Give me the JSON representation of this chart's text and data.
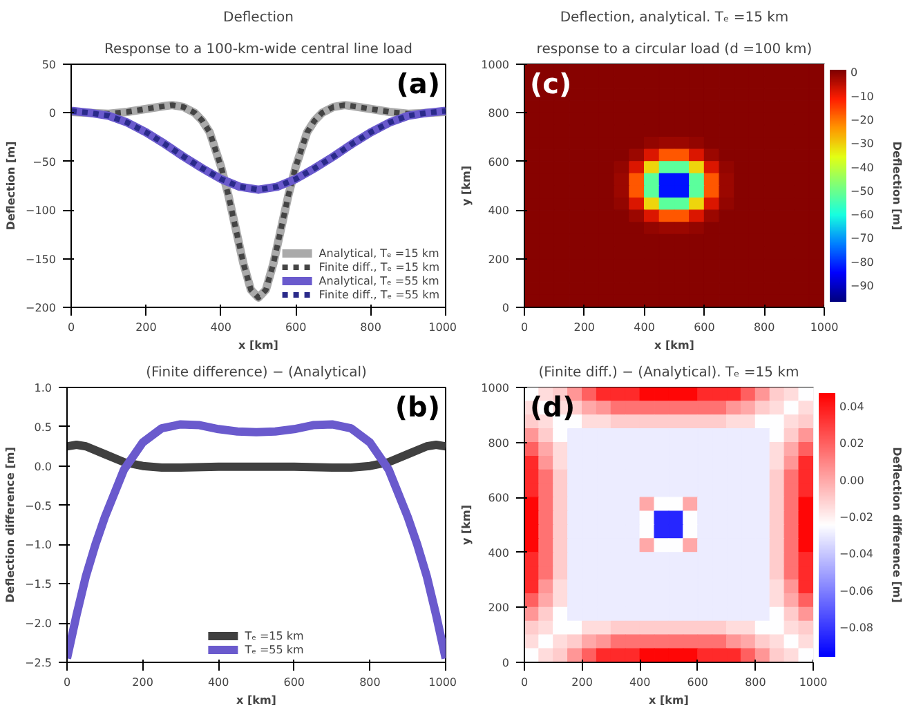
{
  "chart_data": [
    {
      "type": "line",
      "title": "Deflection",
      "subtitle": "Response to a 100-km-wide central line load",
      "xlabel": "x [km]",
      "ylabel": "Deflection [m]",
      "annotations": [
        "(a)"
      ],
      "xlim": [
        0,
        1000
      ],
      "xticks": [
        0,
        200,
        400,
        600,
        800,
        1000
      ],
      "ylim": [
        -200,
        50
      ],
      "yticks": [
        {
          "value": -200,
          "label": "−200"
        },
        {
          "value": -150,
          "label": "−150"
        },
        {
          "value": -100,
          "label": "−100"
        },
        {
          "value": -50,
          "label": "−50"
        },
        0,
        50
      ],
      "grid": false,
      "legend": "bottom right",
      "series": [
        {
          "name": "Analytical, Tₑ =15 km",
          "color": "#aaaaaa",
          "line_style": "solid",
          "x": [
            0,
            50,
            100,
            150,
            200,
            250,
            270,
            300,
            330,
            350,
            370,
            400,
            420,
            440,
            460,
            480,
            500,
            520,
            540,
            560,
            580,
            600,
            630,
            650,
            670,
            700,
            730,
            750,
            800,
            850,
            900,
            950,
            1000
          ],
          "values": [
            1,
            0,
            -1,
            1,
            4,
            7,
            8,
            6,
            0,
            -8,
            -20,
            -55,
            -85,
            -120,
            -155,
            -182,
            -190,
            -182,
            -155,
            -120,
            -85,
            -55,
            -20,
            -8,
            0,
            6,
            8,
            7,
            4,
            1,
            -1,
            0,
            1
          ]
        },
        {
          "name": "Finite diff., Tₑ =15 km",
          "color": "#444444",
          "line_style": "dotted",
          "x": [
            0,
            50,
            100,
            150,
            200,
            250,
            270,
            300,
            330,
            350,
            370,
            400,
            420,
            440,
            460,
            480,
            500,
            520,
            540,
            560,
            580,
            600,
            630,
            650,
            670,
            700,
            730,
            750,
            800,
            850,
            900,
            950,
            1000
          ],
          "values": [
            1,
            0,
            -1,
            1,
            4,
            7,
            8,
            6,
            0,
            -8,
            -20,
            -55,
            -85,
            -120,
            -155,
            -182,
            -190,
            -182,
            -155,
            -120,
            -85,
            -55,
            -20,
            -8,
            0,
            6,
            8,
            7,
            4,
            1,
            -1,
            0,
            1
          ]
        },
        {
          "name": "Analytical, Tₑ =55 km",
          "color": "#6a5acd",
          "line_style": "solid",
          "x": [
            0,
            50,
            100,
            150,
            200,
            250,
            300,
            350,
            400,
            450,
            500,
            550,
            600,
            650,
            700,
            750,
            800,
            850,
            900,
            950,
            1000
          ],
          "values": [
            2,
            0,
            -3,
            -10,
            -20,
            -32,
            -45,
            -57,
            -68,
            -76,
            -79,
            -76,
            -68,
            -57,
            -45,
            -32,
            -20,
            -10,
            -3,
            0,
            2
          ]
        },
        {
          "name": "Finite diff., Tₑ =55 km",
          "color": "#2a2a8a",
          "line_style": "dotted",
          "x": [
            0,
            50,
            100,
            150,
            200,
            250,
            300,
            350,
            400,
            450,
            500,
            550,
            600,
            650,
            700,
            750,
            800,
            850,
            900,
            950,
            1000
          ],
          "values": [
            2,
            0,
            -3,
            -10,
            -20,
            -32,
            -45,
            -57,
            -68,
            -76,
            -79,
            -76,
            -68,
            -57,
            -45,
            -32,
            -20,
            -10,
            -3,
            0,
            2
          ]
        }
      ]
    },
    {
      "type": "heatmap",
      "title": "Deflection, analytical. Tₑ =15 km",
      "subtitle": "response to a circular load (d =100 km)",
      "xlabel": "x [km]",
      "ylabel": "y [km]",
      "clabel": "Deflection [m]",
      "annotations": [
        "(c)"
      ],
      "xlim": [
        0,
        1000
      ],
      "xticks": [
        0,
        200,
        400,
        600,
        800,
        1000
      ],
      "ylim": [
        0,
        1000
      ],
      "yticks": [
        0,
        200,
        400,
        600,
        800,
        1000
      ],
      "clim": [
        -97,
        1
      ],
      "cticks": [
        {
          "value": 0,
          "label": "0"
        },
        {
          "value": -10,
          "label": "−10"
        },
        {
          "value": -20,
          "label": "−20"
        },
        {
          "value": -30,
          "label": "−30"
        },
        {
          "value": -40,
          "label": "−40"
        },
        {
          "value": -50,
          "label": "−50"
        },
        {
          "value": -60,
          "label": "−60"
        },
        {
          "value": -70,
          "label": "−70"
        },
        {
          "value": -80,
          "label": "−80"
        },
        {
          "value": -90,
          "label": "−90"
        }
      ],
      "colors": [
        "#00007f",
        "#0000ff",
        "#0080ff",
        "#17ffe0",
        "#7dff7a",
        "#e3ff14",
        "#ff9600",
        "#ff1e00",
        "#7f0000"
      ],
      "cells": [
        [
          0,
          0,
          0,
          0,
          0,
          0,
          0,
          0,
          0,
          0,
          0,
          0,
          0,
          0,
          0,
          0,
          0,
          0,
          0,
          0
        ],
        [
          0,
          0,
          0,
          0,
          0,
          0,
          0,
          0,
          0,
          0,
          0,
          0,
          0,
          0,
          0,
          0,
          0,
          0,
          0,
          0
        ],
        [
          0,
          0,
          0,
          0,
          0,
          0,
          0,
          0,
          0,
          0,
          0,
          0,
          0,
          0,
          0,
          0,
          0,
          0,
          0,
          0
        ],
        [
          0,
          0,
          0,
          0,
          0,
          0,
          0,
          0,
          0,
          0,
          0,
          0,
          0,
          0,
          0,
          0,
          0,
          0,
          0,
          0
        ],
        [
          0,
          0,
          0,
          0,
          0,
          0,
          0,
          0,
          0,
          0,
          0,
          0,
          0,
          0,
          0,
          0,
          0,
          0,
          0,
          0
        ],
        [
          0,
          0,
          0,
          0,
          0,
          0,
          0,
          0,
          0,
          0,
          0,
          0,
          0,
          0,
          0,
          0,
          0,
          0,
          0,
          0
        ],
        [
          0,
          0,
          0,
          0,
          0,
          0,
          0,
          0,
          -1,
          -2,
          -2,
          -1,
          0,
          0,
          0,
          0,
          0,
          0,
          0,
          0
        ],
        [
          0,
          0,
          0,
          0,
          0,
          0,
          0,
          -2,
          -8,
          -17,
          -17,
          -8,
          -2,
          0,
          0,
          0,
          0,
          0,
          0,
          0
        ],
        [
          0,
          0,
          0,
          0,
          0,
          0,
          -1,
          -8,
          -31,
          -52,
          -52,
          -31,
          -8,
          -1,
          0,
          0,
          0,
          0,
          0,
          0
        ],
        [
          0,
          0,
          0,
          0,
          0,
          0,
          -2,
          -17,
          -52,
          -83,
          -83,
          -52,
          -17,
          -2,
          0,
          0,
          0,
          0,
          0,
          0
        ],
        [
          0,
          0,
          0,
          0,
          0,
          0,
          -2,
          -17,
          -52,
          -83,
          -83,
          -52,
          -17,
          -2,
          0,
          0,
          0,
          0,
          0,
          0
        ],
        [
          0,
          0,
          0,
          0,
          0,
          0,
          -1,
          -8,
          -31,
          -52,
          -52,
          -31,
          -8,
          -1,
          0,
          0,
          0,
          0,
          0,
          0
        ],
        [
          0,
          0,
          0,
          0,
          0,
          0,
          0,
          -2,
          -8,
          -17,
          -17,
          -8,
          -2,
          0,
          0,
          0,
          0,
          0,
          0,
          0
        ],
        [
          0,
          0,
          0,
          0,
          0,
          0,
          0,
          0,
          -1,
          -2,
          -2,
          -1,
          0,
          0,
          0,
          0,
          0,
          0,
          0,
          0
        ],
        [
          0,
          0,
          0,
          0,
          0,
          0,
          0,
          0,
          0,
          0,
          0,
          0,
          0,
          0,
          0,
          0,
          0,
          0,
          0,
          0
        ],
        [
          0,
          0,
          0,
          0,
          0,
          0,
          0,
          0,
          0,
          0,
          0,
          0,
          0,
          0,
          0,
          0,
          0,
          0,
          0,
          0
        ],
        [
          0,
          0,
          0,
          0,
          0,
          0,
          0,
          0,
          0,
          0,
          0,
          0,
          0,
          0,
          0,
          0,
          0,
          0,
          0,
          0
        ],
        [
          0,
          0,
          0,
          0,
          0,
          0,
          0,
          0,
          0,
          0,
          0,
          0,
          0,
          0,
          0,
          0,
          0,
          0,
          0,
          0
        ],
        [
          0,
          0,
          0,
          0,
          0,
          0,
          0,
          0,
          0,
          0,
          0,
          0,
          0,
          0,
          0,
          0,
          0,
          0,
          0,
          0
        ],
        [
          0,
          0,
          0,
          0,
          0,
          0,
          0,
          0,
          0,
          0,
          0,
          0,
          0,
          0,
          0,
          0,
          0,
          0,
          0,
          0
        ]
      ]
    },
    {
      "type": "line",
      "title": "(Finite difference) − (Analytical)",
      "xlabel": "x [km]",
      "ylabel": "Deflection difference [m]",
      "annotations": [
        "(b)"
      ],
      "xlim": [
        0,
        1000
      ],
      "xticks": [
        0,
        200,
        400,
        600,
        800,
        1000
      ],
      "ylim": [
        -2.5,
        1
      ],
      "yticks": [
        {
          "value": -2.5,
          "label": "−2.5"
        },
        {
          "value": -2,
          "label": "−2.0"
        },
        {
          "value": -1.5,
          "label": "−1.5"
        },
        {
          "value": -1,
          "label": "−1.0"
        },
        {
          "value": -0.5,
          "label": "−0.5"
        },
        {
          "value": 0,
          "label": "0.0"
        },
        {
          "value": 0.5,
          "label": "0.5"
        },
        {
          "value": 1,
          "label": "1.0"
        }
      ],
      "grid": false,
      "legend": "bottom",
      "series": [
        {
          "name": "Tₑ =15 km",
          "color": "#404040",
          "line_style": "solid",
          "x": [
            0,
            25,
            50,
            100,
            150,
            200,
            250,
            300,
            400,
            500,
            600,
            700,
            750,
            800,
            850,
            900,
            950,
            975,
            1000
          ],
          "values": [
            0.25,
            0.27,
            0.25,
            0.15,
            0.05,
            0,
            -0.02,
            -0.02,
            -0.01,
            -0.01,
            -0.01,
            -0.02,
            -0.02,
            0,
            0.05,
            0.15,
            0.25,
            0.27,
            0.25
          ]
        },
        {
          "name": "Tₑ =55 km",
          "color": "#6a5acd",
          "line_style": "solid",
          "x": [
            0,
            25,
            50,
            75,
            100,
            150,
            200,
            250,
            300,
            350,
            400,
            450,
            500,
            550,
            600,
            650,
            700,
            750,
            800,
            850,
            900,
            925,
            950,
            975,
            1000
          ],
          "values": [
            -2.45,
            -1.9,
            -1.4,
            -1.0,
            -0.65,
            -0.05,
            0.3,
            0.48,
            0.53,
            0.52,
            0.47,
            0.44,
            0.43,
            0.44,
            0.47,
            0.52,
            0.53,
            0.48,
            0.3,
            -0.05,
            -0.65,
            -1.0,
            -1.4,
            -1.9,
            -2.45
          ]
        }
      ]
    },
    {
      "type": "heatmap",
      "title": "(Finite diff.) − (Analytical). Tₑ =15 km",
      "xlabel": "x [km]",
      "ylabel": "y [km]",
      "clabel": "Deflection difference [m]",
      "annotations": [
        "(d)"
      ],
      "xlim": [
        0,
        1000
      ],
      "xticks": [
        0,
        200,
        400,
        600,
        800,
        1000
      ],
      "ylim": [
        0,
        1000
      ],
      "yticks": [
        0,
        200,
        400,
        600,
        800,
        1000
      ],
      "clim": [
        -0.096,
        0.047
      ],
      "cticks": [
        {
          "value": -0.08,
          "label": "−0.08"
        },
        {
          "value": -0.06,
          "label": "−0.06"
        },
        {
          "value": -0.04,
          "label": "−0.04"
        },
        {
          "value": -0.02,
          "label": "−0.02"
        },
        {
          "value": 0,
          "label": "0.00"
        },
        {
          "value": 0.02,
          "label": "0.02"
        },
        {
          "value": 0.04,
          "label": "0.04"
        }
      ],
      "colors": [
        "#0000ff",
        "#ffffff",
        "#ff0000"
      ],
      "cells": [
        [
          -0.025,
          -0.015,
          -0.01,
          0.005,
          0.02,
          0.035,
          0.035,
          0.035,
          0.045,
          0.045,
          0.045,
          0.045,
          0.035,
          0.035,
          0.035,
          0.02,
          0.005,
          -0.01,
          -0.015,
          -0.025
        ],
        [
          -0.015,
          -0.025,
          -0.015,
          -0.01,
          0,
          0.005,
          0.015,
          0.015,
          0.015,
          0.015,
          0.015,
          0.015,
          0.015,
          0.015,
          0.005,
          0,
          -0.01,
          -0.015,
          -0.025,
          -0.015
        ],
        [
          -0.01,
          -0.015,
          -0.025,
          -0.025,
          -0.015,
          -0.015,
          -0.01,
          -0.01,
          -0.01,
          -0.01,
          -0.01,
          -0.01,
          -0.01,
          -0.01,
          -0.015,
          -0.015,
          -0.025,
          -0.025,
          -0.015,
          -0.01
        ],
        [
          0.005,
          -0.01,
          -0.025,
          -0.03,
          -0.03,
          -0.03,
          -0.03,
          -0.03,
          -0.03,
          -0.03,
          -0.03,
          -0.03,
          -0.03,
          -0.03,
          -0.03,
          -0.03,
          -0.03,
          -0.025,
          -0.01,
          0.005
        ],
        [
          0.02,
          0,
          -0.015,
          -0.03,
          -0.03,
          -0.03,
          -0.03,
          -0.03,
          -0.03,
          -0.03,
          -0.03,
          -0.03,
          -0.03,
          -0.03,
          -0.03,
          -0.03,
          -0.03,
          -0.015,
          0,
          0.02
        ],
        [
          0.035,
          0.005,
          -0.015,
          -0.03,
          -0.03,
          -0.03,
          -0.03,
          -0.03,
          -0.03,
          -0.03,
          -0.03,
          -0.03,
          -0.03,
          -0.03,
          -0.03,
          -0.03,
          -0.03,
          -0.015,
          0.005,
          0.035
        ],
        [
          0.035,
          0.015,
          -0.01,
          -0.03,
          -0.03,
          -0.03,
          -0.03,
          -0.03,
          -0.03,
          -0.03,
          -0.03,
          -0.03,
          -0.03,
          -0.03,
          -0.03,
          -0.03,
          -0.03,
          -0.01,
          0.015,
          0.035
        ],
        [
          0.035,
          0.015,
          -0.01,
          -0.03,
          -0.03,
          -0.03,
          -0.03,
          -0.03,
          -0.03,
          -0.03,
          -0.03,
          -0.03,
          -0.03,
          -0.03,
          -0.03,
          -0.03,
          -0.03,
          -0.01,
          0.015,
          0.035
        ],
        [
          0.045,
          0.015,
          -0.01,
          -0.03,
          -0.03,
          -0.03,
          -0.03,
          -0.03,
          0,
          -0.025,
          -0.025,
          0,
          -0.03,
          -0.03,
          -0.03,
          -0.03,
          -0.03,
          -0.01,
          0.015,
          0.045
        ],
        [
          0.045,
          0.015,
          -0.01,
          -0.03,
          -0.03,
          -0.03,
          -0.03,
          -0.03,
          -0.025,
          -0.085,
          -0.085,
          -0.025,
          -0.03,
          -0.03,
          -0.03,
          -0.03,
          -0.03,
          -0.01,
          0.015,
          0.045
        ],
        [
          0.045,
          0.015,
          -0.01,
          -0.03,
          -0.03,
          -0.03,
          -0.03,
          -0.03,
          -0.025,
          -0.085,
          -0.085,
          -0.025,
          -0.03,
          -0.03,
          -0.03,
          -0.03,
          -0.03,
          -0.01,
          0.015,
          0.045
        ],
        [
          0.045,
          0.015,
          -0.01,
          -0.03,
          -0.03,
          -0.03,
          -0.03,
          -0.03,
          0,
          -0.025,
          -0.025,
          0,
          -0.03,
          -0.03,
          -0.03,
          -0.03,
          -0.03,
          -0.01,
          0.015,
          0.045
        ],
        [
          0.035,
          0.015,
          -0.01,
          -0.03,
          -0.03,
          -0.03,
          -0.03,
          -0.03,
          -0.03,
          -0.03,
          -0.03,
          -0.03,
          -0.03,
          -0.03,
          -0.03,
          -0.03,
          -0.03,
          -0.01,
          0.015,
          0.035
        ],
        [
          0.035,
          0.015,
          -0.01,
          -0.03,
          -0.03,
          -0.03,
          -0.03,
          -0.03,
          -0.03,
          -0.03,
          -0.03,
          -0.03,
          -0.03,
          -0.03,
          -0.03,
          -0.03,
          -0.03,
          -0.01,
          0.015,
          0.035
        ],
        [
          0.035,
          0.005,
          -0.015,
          -0.03,
          -0.03,
          -0.03,
          -0.03,
          -0.03,
          -0.03,
          -0.03,
          -0.03,
          -0.03,
          -0.03,
          -0.03,
          -0.03,
          -0.03,
          -0.03,
          -0.015,
          0.005,
          0.035
        ],
        [
          0.02,
          0,
          -0.015,
          -0.03,
          -0.03,
          -0.03,
          -0.03,
          -0.03,
          -0.03,
          -0.03,
          -0.03,
          -0.03,
          -0.03,
          -0.03,
          -0.03,
          -0.03,
          -0.03,
          -0.015,
          0,
          0.02
        ],
        [
          0.005,
          -0.01,
          -0.025,
          -0.03,
          -0.03,
          -0.03,
          -0.03,
          -0.03,
          -0.03,
          -0.03,
          -0.03,
          -0.03,
          -0.03,
          -0.03,
          -0.03,
          -0.03,
          -0.03,
          -0.025,
          -0.01,
          0.005
        ],
        [
          -0.01,
          -0.015,
          -0.025,
          -0.025,
          -0.015,
          -0.015,
          -0.01,
          -0.01,
          -0.01,
          -0.01,
          -0.01,
          -0.01,
          -0.01,
          -0.01,
          -0.015,
          -0.015,
          -0.025,
          -0.025,
          -0.015,
          -0.01
        ],
        [
          -0.015,
          -0.025,
          -0.015,
          -0.01,
          0,
          0.005,
          0.015,
          0.015,
          0.015,
          0.015,
          0.015,
          0.015,
          0.015,
          0.015,
          0.005,
          0,
          -0.01,
          -0.015,
          -0.025,
          -0.015
        ],
        [
          -0.025,
          -0.015,
          -0.01,
          0.005,
          0.02,
          0.035,
          0.035,
          0.035,
          0.045,
          0.045,
          0.045,
          0.045,
          0.035,
          0.035,
          0.035,
          0.02,
          0.005,
          -0.01,
          -0.015,
          -0.025
        ]
      ]
    }
  ]
}
